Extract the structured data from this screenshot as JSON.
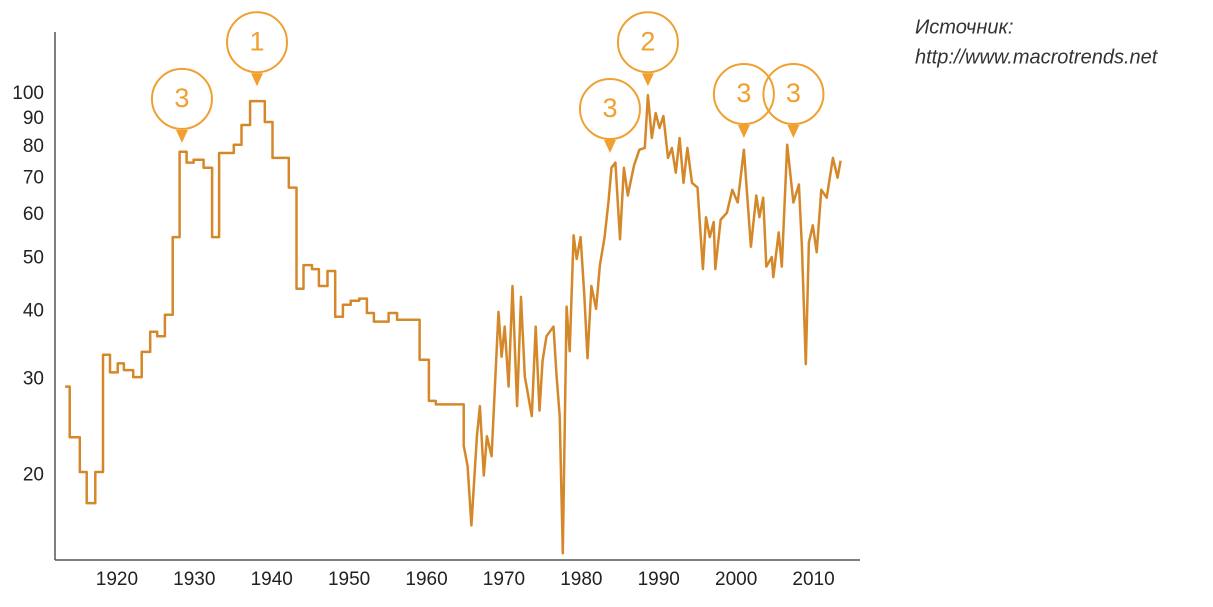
{
  "chart_data": {
    "type": "line",
    "log_scale": true,
    "color": "#d4882a",
    "annotation_color": "#f0a030",
    "source": [
      "Источник:",
      "http://www.macrotrends.net"
    ],
    "xlim": [
      1912,
      2016
    ],
    "ylim": [
      14,
      130
    ],
    "xticks": [
      1920,
      1930,
      1940,
      1950,
      1960,
      1970,
      1980,
      1990,
      2000,
      2010
    ],
    "yticks": [
      20,
      30,
      40,
      50,
      60,
      70,
      80,
      90,
      100
    ],
    "x": [
      1913.3,
      1913.9,
      1913.9,
      1915.2,
      1915.2,
      1916.1,
      1916.1,
      1917.2,
      1917.2,
      1918.2,
      1918.2,
      1919.1,
      1919.1,
      1920.1,
      1920.1,
      1920.9,
      1920.9,
      1922.1,
      1922.1,
      1923.2,
      1923.2,
      1924.3,
      1924.3,
      1925.2,
      1925.2,
      1926.2,
      1926.2,
      1927.2,
      1927.2,
      1928.1,
      1928.1,
      1929.0,
      1929.0,
      1929.9,
      1929.9,
      1931.2,
      1931.2,
      1932.3,
      1932.3,
      1933.2,
      1933.2,
      1935.1,
      1935.1,
      1936.1,
      1936.1,
      1937.2,
      1937.2,
      1939.1,
      1939.1,
      1940.1,
      1940.1,
      1942.2,
      1942.2,
      1943.2,
      1943.2,
      1944.1,
      1944.1,
      1945.2,
      1945.2,
      1946.1,
      1946.1,
      1947.2,
      1947.2,
      1948.2,
      1948.2,
      1949.2,
      1949.2,
      1950.2,
      1950.2,
      1951.3,
      1951.3,
      1952.3,
      1952.3,
      1953.2,
      1953.2,
      1955.1,
      1955.1,
      1956.2,
      1956.2,
      1959.1,
      1959.1,
      1960.3,
      1960.3,
      1961.2,
      1961.2,
      1964.8,
      1964.8,
      1965.3,
      1965.8,
      1966.5,
      1966.9,
      1967.4,
      1967.8,
      1968.4,
      1968.9,
      1969.3,
      1969.7,
      1970.1,
      1970.6,
      1971.1,
      1971.7,
      1972.2,
      1972.7,
      1973.6,
      1974.1,
      1974.6,
      1975.0,
      1975.5,
      1976.4,
      1976.8,
      1977.2,
      1977.6,
      1978.1,
      1978.5,
      1979.0,
      1979.4,
      1979.9,
      1980.4,
      1980.8,
      1981.3,
      1981.9,
      1982.4,
      1983.0,
      1983.5,
      1983.9,
      1984.4,
      1985.0,
      1985.5,
      1986.0,
      1986.8,
      1987.5,
      1988.2,
      1988.6,
      1989.1,
      1989.6,
      1990.1,
      1990.6,
      1991.2,
      1991.7,
      1992.2,
      1992.7,
      1993.2,
      1993.7,
      1994.3,
      1995.0,
      1995.7,
      1996.1,
      1996.6,
      1997.1,
      1997.3,
      1998.0,
      1998.8,
      1999.5,
      2000.2,
      2001.0,
      2001.9,
      2002.6,
      2003.0,
      2003.5,
      2003.9,
      2004.6,
      2004.8,
      2005.5,
      2005.9,
      2006.6,
      2007.4,
      2008.1,
      2008.5,
      2009.0,
      2009.4,
      2009.9,
      2010.4,
      2011.0,
      2011.7,
      2012.5,
      2013.1,
      2013.5
    ],
    "values": [
      29.1,
      29.1,
      23.5,
      23.5,
      20.3,
      20.3,
      17.8,
      17.8,
      20.3,
      20.3,
      33.3,
      33.3,
      30.9,
      30.9,
      32.1,
      32.1,
      31.2,
      31.2,
      30.3,
      30.3,
      33.7,
      33.7,
      36.7,
      36.7,
      36.0,
      36.0,
      39.4,
      39.4,
      54.7,
      54.7,
      78.4,
      78.4,
      74.9,
      74.9,
      75.8,
      75.8,
      73.3,
      73.3,
      54.7,
      54.7,
      78.0,
      78.0,
      80.8,
      80.8,
      87.8,
      87.8,
      97.1,
      97.1,
      88.9,
      88.9,
      76.4,
      76.4,
      67.4,
      67.4,
      44.0,
      44.0,
      48.6,
      48.6,
      47.8,
      47.8,
      44.5,
      44.5,
      47.4,
      47.4,
      39.1,
      39.1,
      41.1,
      41.1,
      41.8,
      41.8,
      42.2,
      42.2,
      39.7,
      39.7,
      38.3,
      38.3,
      39.7,
      39.7,
      38.6,
      38.6,
      32.6,
      32.6,
      27.4,
      27.4,
      27.0,
      27.0,
      22.7,
      20.8,
      16.2,
      23.6,
      26.8,
      20.0,
      23.6,
      21.7,
      30.4,
      39.9,
      33.0,
      37.5,
      29.1,
      44.5,
      26.8,
      42.5,
      30.4,
      25.7,
      37.5,
      26.3,
      32.5,
      36.0,
      37.5,
      30.4,
      25.7,
      14.4,
      40.8,
      33.8,
      55.1,
      49.9,
      54.7,
      42.5,
      32.8,
      44.5,
      40.4,
      48.6,
      54.7,
      63.3,
      73.3,
      74.9,
      54.2,
      73.3,
      65.2,
      74.0,
      79.1,
      79.7,
      99.6,
      83.1,
      92.3,
      86.7,
      91.2,
      76.4,
      79.7,
      71.8,
      83.1,
      68.8,
      79.7,
      68.8,
      67.4,
      47.8,
      59.5,
      54.7,
      58.3,
      47.8,
      58.9,
      60.6,
      66.8,
      63.3,
      79.1,
      52.5,
      65.2,
      59.5,
      64.6,
      48.3,
      50.3,
      46.2,
      55.8,
      48.3,
      80.8,
      63.3,
      68.3,
      52.5,
      32.0,
      53.5,
      57.5,
      51.3,
      66.8,
      64.6,
      76.4,
      70.3,
      75.5
    ],
    "annotations": [
      {
        "text": "3",
        "x": 1928.4,
        "y": 81.4
      },
      {
        "text": "1",
        "x": 1938.1,
        "y": 103.4
      },
      {
        "text": "3",
        "x": 1983.7,
        "y": 78.0
      },
      {
        "text": "2",
        "x": 1988.6,
        "y": 103.4
      },
      {
        "text": "3",
        "x": 2001.0,
        "y": 83.1
      },
      {
        "text": "3",
        "x": 2007.4,
        "y": 83.1
      }
    ]
  }
}
